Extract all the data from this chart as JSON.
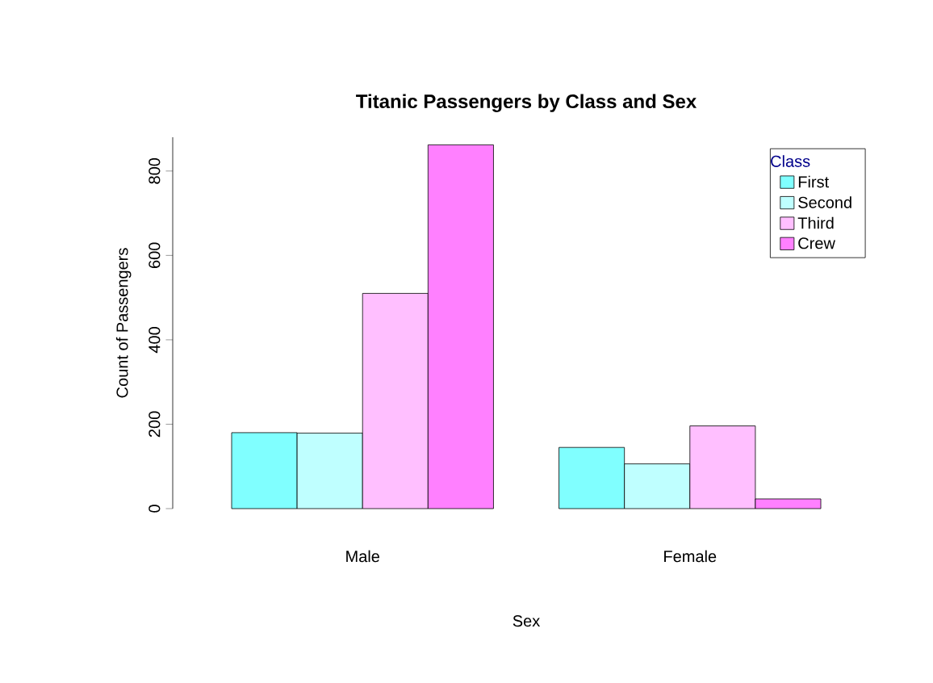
{
  "chart_data": {
    "type": "bar",
    "title": "Titanic Passengers by Class and Sex",
    "xlabel": "Sex",
    "ylabel": "Count of Passengers",
    "legend_title": "Class",
    "categories": [
      "Male",
      "Female"
    ],
    "series": [
      {
        "name": "First",
        "color": "#80ffff",
        "values": [
          180,
          145
        ]
      },
      {
        "name": "Second",
        "color": "#bfffff",
        "values": [
          179,
          106
        ]
      },
      {
        "name": "Third",
        "color": "#ffbfff",
        "values": [
          510,
          196
        ]
      },
      {
        "name": "Crew",
        "color": "#ff80ff",
        "values": [
          862,
          23
        ]
      }
    ],
    "ylim": [
      0,
      880
    ],
    "yticks": [
      0,
      200,
      400,
      600,
      800
    ],
    "grid": false,
    "legend": "top right"
  }
}
